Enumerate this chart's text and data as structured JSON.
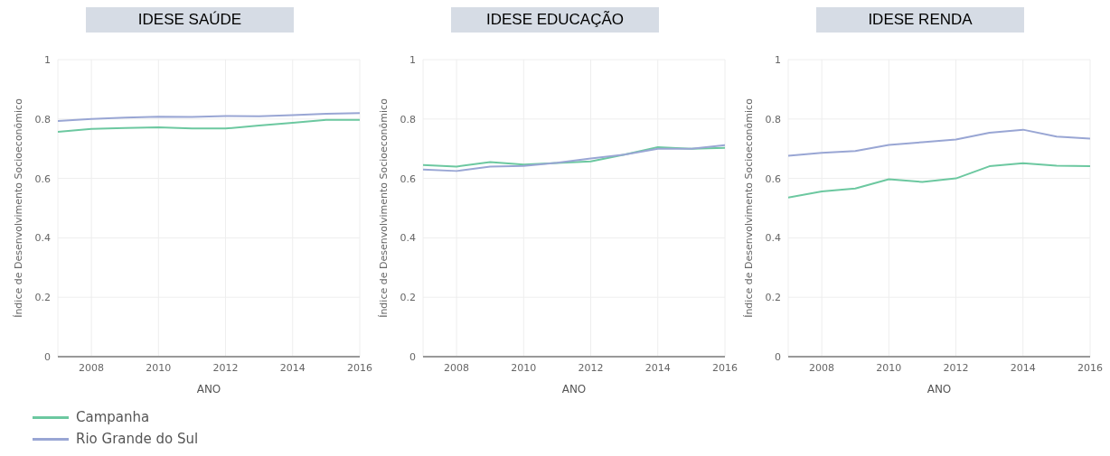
{
  "chart_data": [
    {
      "type": "line",
      "title": "IDESE SAÚDE",
      "xlabel": "ANO",
      "ylabel": "Índice de Desenvolvimento Socioeconômico",
      "x": [
        2007,
        2008,
        2009,
        2010,
        2011,
        2012,
        2013,
        2014,
        2015,
        2016
      ],
      "xlim": [
        2007,
        2016
      ],
      "xticks": [
        2008,
        2010,
        2012,
        2014,
        2016
      ],
      "ylim": [
        0,
        1
      ],
      "yticks": [
        0,
        0.2,
        0.4,
        0.6,
        0.8,
        1
      ],
      "grid": true,
      "legend": "bottom left",
      "series": [
        {
          "name": "Campanha",
          "color": "#6cc8a0",
          "values": [
            0.757,
            0.767,
            0.77,
            0.772,
            0.768,
            0.768,
            0.778,
            0.787,
            0.797,
            0.797
          ]
        },
        {
          "name": "Rio Grande do Sul",
          "color": "#99a6d4",
          "values": [
            0.793,
            0.8,
            0.805,
            0.808,
            0.807,
            0.81,
            0.809,
            0.813,
            0.818,
            0.82
          ]
        }
      ]
    },
    {
      "type": "line",
      "title": "IDESE EDUCAÇÃO",
      "xlabel": "ANO",
      "ylabel": "Índice de Desenvolvimento Socioeconômico",
      "x": [
        2007,
        2008,
        2009,
        2010,
        2011,
        2012,
        2013,
        2014,
        2015,
        2016
      ],
      "xlim": [
        2007,
        2016
      ],
      "xticks": [
        2008,
        2010,
        2012,
        2014,
        2016
      ],
      "ylim": [
        0,
        1
      ],
      "yticks": [
        0,
        0.2,
        0.4,
        0.6,
        0.8,
        1
      ],
      "grid": true,
      "series": [
        {
          "color": "#6cc8a0",
          "values": [
            0.645,
            0.64,
            0.655,
            0.647,
            0.652,
            0.657,
            0.68,
            0.705,
            0.7,
            0.703
          ]
        },
        {
          "color": "#99a6d4",
          "values": [
            0.63,
            0.625,
            0.64,
            0.642,
            0.653,
            0.667,
            0.68,
            0.7,
            0.7,
            0.712
          ]
        }
      ]
    },
    {
      "type": "line",
      "title": "IDESE RENDA",
      "xlabel": "ANO",
      "ylabel": "Índice de Desenvolvimento Socioeconômico",
      "x": [
        2007,
        2008,
        2009,
        2010,
        2011,
        2012,
        2013,
        2014,
        2015,
        2016
      ],
      "xlim": [
        2007,
        2016
      ],
      "xticks": [
        2008,
        2010,
        2012,
        2014,
        2016
      ],
      "ylim": [
        0,
        1
      ],
      "yticks": [
        0,
        0.2,
        0.4,
        0.6,
        0.8,
        1
      ],
      "grid": true,
      "series": [
        {
          "color": "#6cc8a0",
          "values": [
            0.536,
            0.556,
            0.566,
            0.597,
            0.588,
            0.6,
            0.641,
            0.651,
            0.643,
            0.641
          ]
        },
        {
          "color": "#99a6d4",
          "values": [
            0.676,
            0.686,
            0.692,
            0.713,
            0.722,
            0.731,
            0.754,
            0.764,
            0.741,
            0.734
          ]
        }
      ]
    }
  ]
}
